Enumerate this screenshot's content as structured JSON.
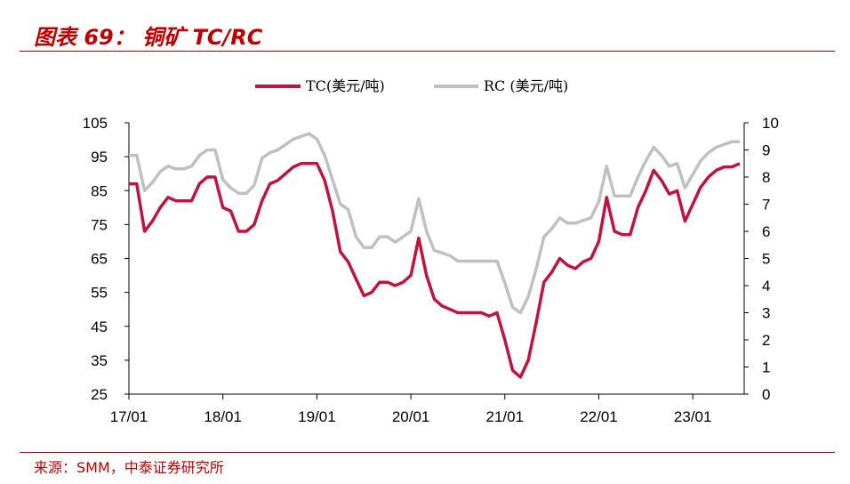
{
  "header": {
    "title": "图表 69： 铜矿 TC/RC"
  },
  "footer": {
    "source": "来源：SMM，中泰证券研究所"
  },
  "chart_data": {
    "type": "line",
    "title": "图表 69： 铜矿 TC/RC",
    "x_tick_labels": [
      "17/01",
      "18/01",
      "19/01",
      "20/01",
      "21/01",
      "22/01",
      "23/01"
    ],
    "y_left": {
      "ticks": [
        105,
        95,
        85,
        75,
        65,
        55,
        45,
        35,
        25
      ],
      "ylim": [
        25,
        105
      ]
    },
    "y_right": {
      "ticks": [
        10,
        9,
        8,
        7,
        6,
        5,
        4,
        3,
        2,
        1,
        0
      ],
      "ylim": [
        0,
        10
      ]
    },
    "legend": {
      "placement": "top-center"
    },
    "grid": false,
    "colors": {
      "tc": "#c0143c",
      "rc": "#c0c0c0",
      "accent": "#c00000"
    },
    "series": [
      {
        "name": "TC(美元/吨)",
        "axis": "left",
        "x": [
          "2017-01",
          "2017-02",
          "2017-03",
          "2017-04",
          "2017-05",
          "2017-06",
          "2017-07",
          "2017-08",
          "2017-09",
          "2017-10",
          "2017-11",
          "2017-12",
          "2018-01",
          "2018-02",
          "2018-03",
          "2018-04",
          "2018-05",
          "2018-06",
          "2018-07",
          "2018-08",
          "2018-09",
          "2018-10",
          "2018-11",
          "2018-12",
          "2019-01",
          "2019-02",
          "2019-03",
          "2019-04",
          "2019-05",
          "2019-06",
          "2019-07",
          "2019-08",
          "2019-09",
          "2019-10",
          "2019-11",
          "2019-12",
          "2020-01",
          "2020-02",
          "2020-03",
          "2020-04",
          "2020-05",
          "2020-06",
          "2020-07",
          "2020-08",
          "2020-09",
          "2020-10",
          "2020-11",
          "2020-12",
          "2021-01",
          "2021-02",
          "2021-03",
          "2021-04",
          "2021-05",
          "2021-06",
          "2021-07",
          "2021-08",
          "2021-09",
          "2021-10",
          "2021-11",
          "2021-12",
          "2022-01",
          "2022-02",
          "2022-03",
          "2022-04",
          "2022-05",
          "2022-06",
          "2022-07",
          "2022-08",
          "2022-09",
          "2022-10",
          "2022-11",
          "2022-12",
          "2023-01",
          "2023-02",
          "2023-03",
          "2023-04",
          "2023-05",
          "2023-06",
          "2023-07"
        ],
        "values": [
          87,
          87,
          73,
          76,
          80,
          83,
          82,
          82,
          82,
          87,
          89,
          89,
          80,
          79,
          73,
          73,
          75,
          82,
          87,
          88,
          90,
          92,
          93,
          93,
          93,
          88,
          79,
          67,
          64,
          59,
          54,
          55,
          58,
          58,
          57,
          58,
          60,
          71,
          60,
          53,
          51,
          50,
          49,
          49,
          49,
          49,
          48,
          49,
          41,
          32,
          30,
          35,
          46,
          58,
          61,
          65,
          63,
          62,
          64,
          65,
          70,
          83,
          73,
          72,
          72,
          80,
          85,
          91,
          88,
          84,
          85,
          76,
          81,
          86,
          89,
          91,
          92,
          92,
          93
        ]
      },
      {
        "name": "RC (美元/吨)",
        "axis": "right",
        "x": [
          "2017-01",
          "2017-02",
          "2017-03",
          "2017-04",
          "2017-05",
          "2017-06",
          "2017-07",
          "2017-08",
          "2017-09",
          "2017-10",
          "2017-11",
          "2017-12",
          "2018-01",
          "2018-02",
          "2018-03",
          "2018-04",
          "2018-05",
          "2018-06",
          "2018-07",
          "2018-08",
          "2018-09",
          "2018-10",
          "2018-11",
          "2018-12",
          "2019-01",
          "2019-02",
          "2019-03",
          "2019-04",
          "2019-05",
          "2019-06",
          "2019-07",
          "2019-08",
          "2019-09",
          "2019-10",
          "2019-11",
          "2019-12",
          "2020-01",
          "2020-02",
          "2020-03",
          "2020-04",
          "2020-05",
          "2020-06",
          "2020-07",
          "2020-08",
          "2020-09",
          "2020-10",
          "2020-11",
          "2020-12",
          "2021-01",
          "2021-02",
          "2021-03",
          "2021-04",
          "2021-05",
          "2021-06",
          "2021-07",
          "2021-08",
          "2021-09",
          "2021-10",
          "2021-11",
          "2021-12",
          "2022-01",
          "2022-02",
          "2022-03",
          "2022-04",
          "2022-05",
          "2022-06",
          "2022-07",
          "2022-08",
          "2022-09",
          "2022-10",
          "2022-11",
          "2022-12",
          "2023-01",
          "2023-02",
          "2023-03",
          "2023-04",
          "2023-05",
          "2023-06",
          "2023-07"
        ],
        "values": [
          8.8,
          8.8,
          7.5,
          7.8,
          8.2,
          8.4,
          8.3,
          8.3,
          8.4,
          8.8,
          9.0,
          9.0,
          7.9,
          7.6,
          7.4,
          7.4,
          7.7,
          8.7,
          8.9,
          9.0,
          9.2,
          9.4,
          9.5,
          9.6,
          9.4,
          8.8,
          7.9,
          7.0,
          6.8,
          5.8,
          5.4,
          5.4,
          5.8,
          5.8,
          5.6,
          5.8,
          6.0,
          7.2,
          6.0,
          5.3,
          5.2,
          5.1,
          4.9,
          4.9,
          4.9,
          4.9,
          4.9,
          4.9,
          4.1,
          3.2,
          3.0,
          3.6,
          4.6,
          5.8,
          6.1,
          6.5,
          6.3,
          6.3,
          6.4,
          6.5,
          7.1,
          8.4,
          7.3,
          7.3,
          7.3,
          8.0,
          8.6,
          9.1,
          8.8,
          8.4,
          8.5,
          7.6,
          8.1,
          8.6,
          8.9,
          9.1,
          9.2,
          9.3,
          9.3
        ]
      }
    ]
  }
}
